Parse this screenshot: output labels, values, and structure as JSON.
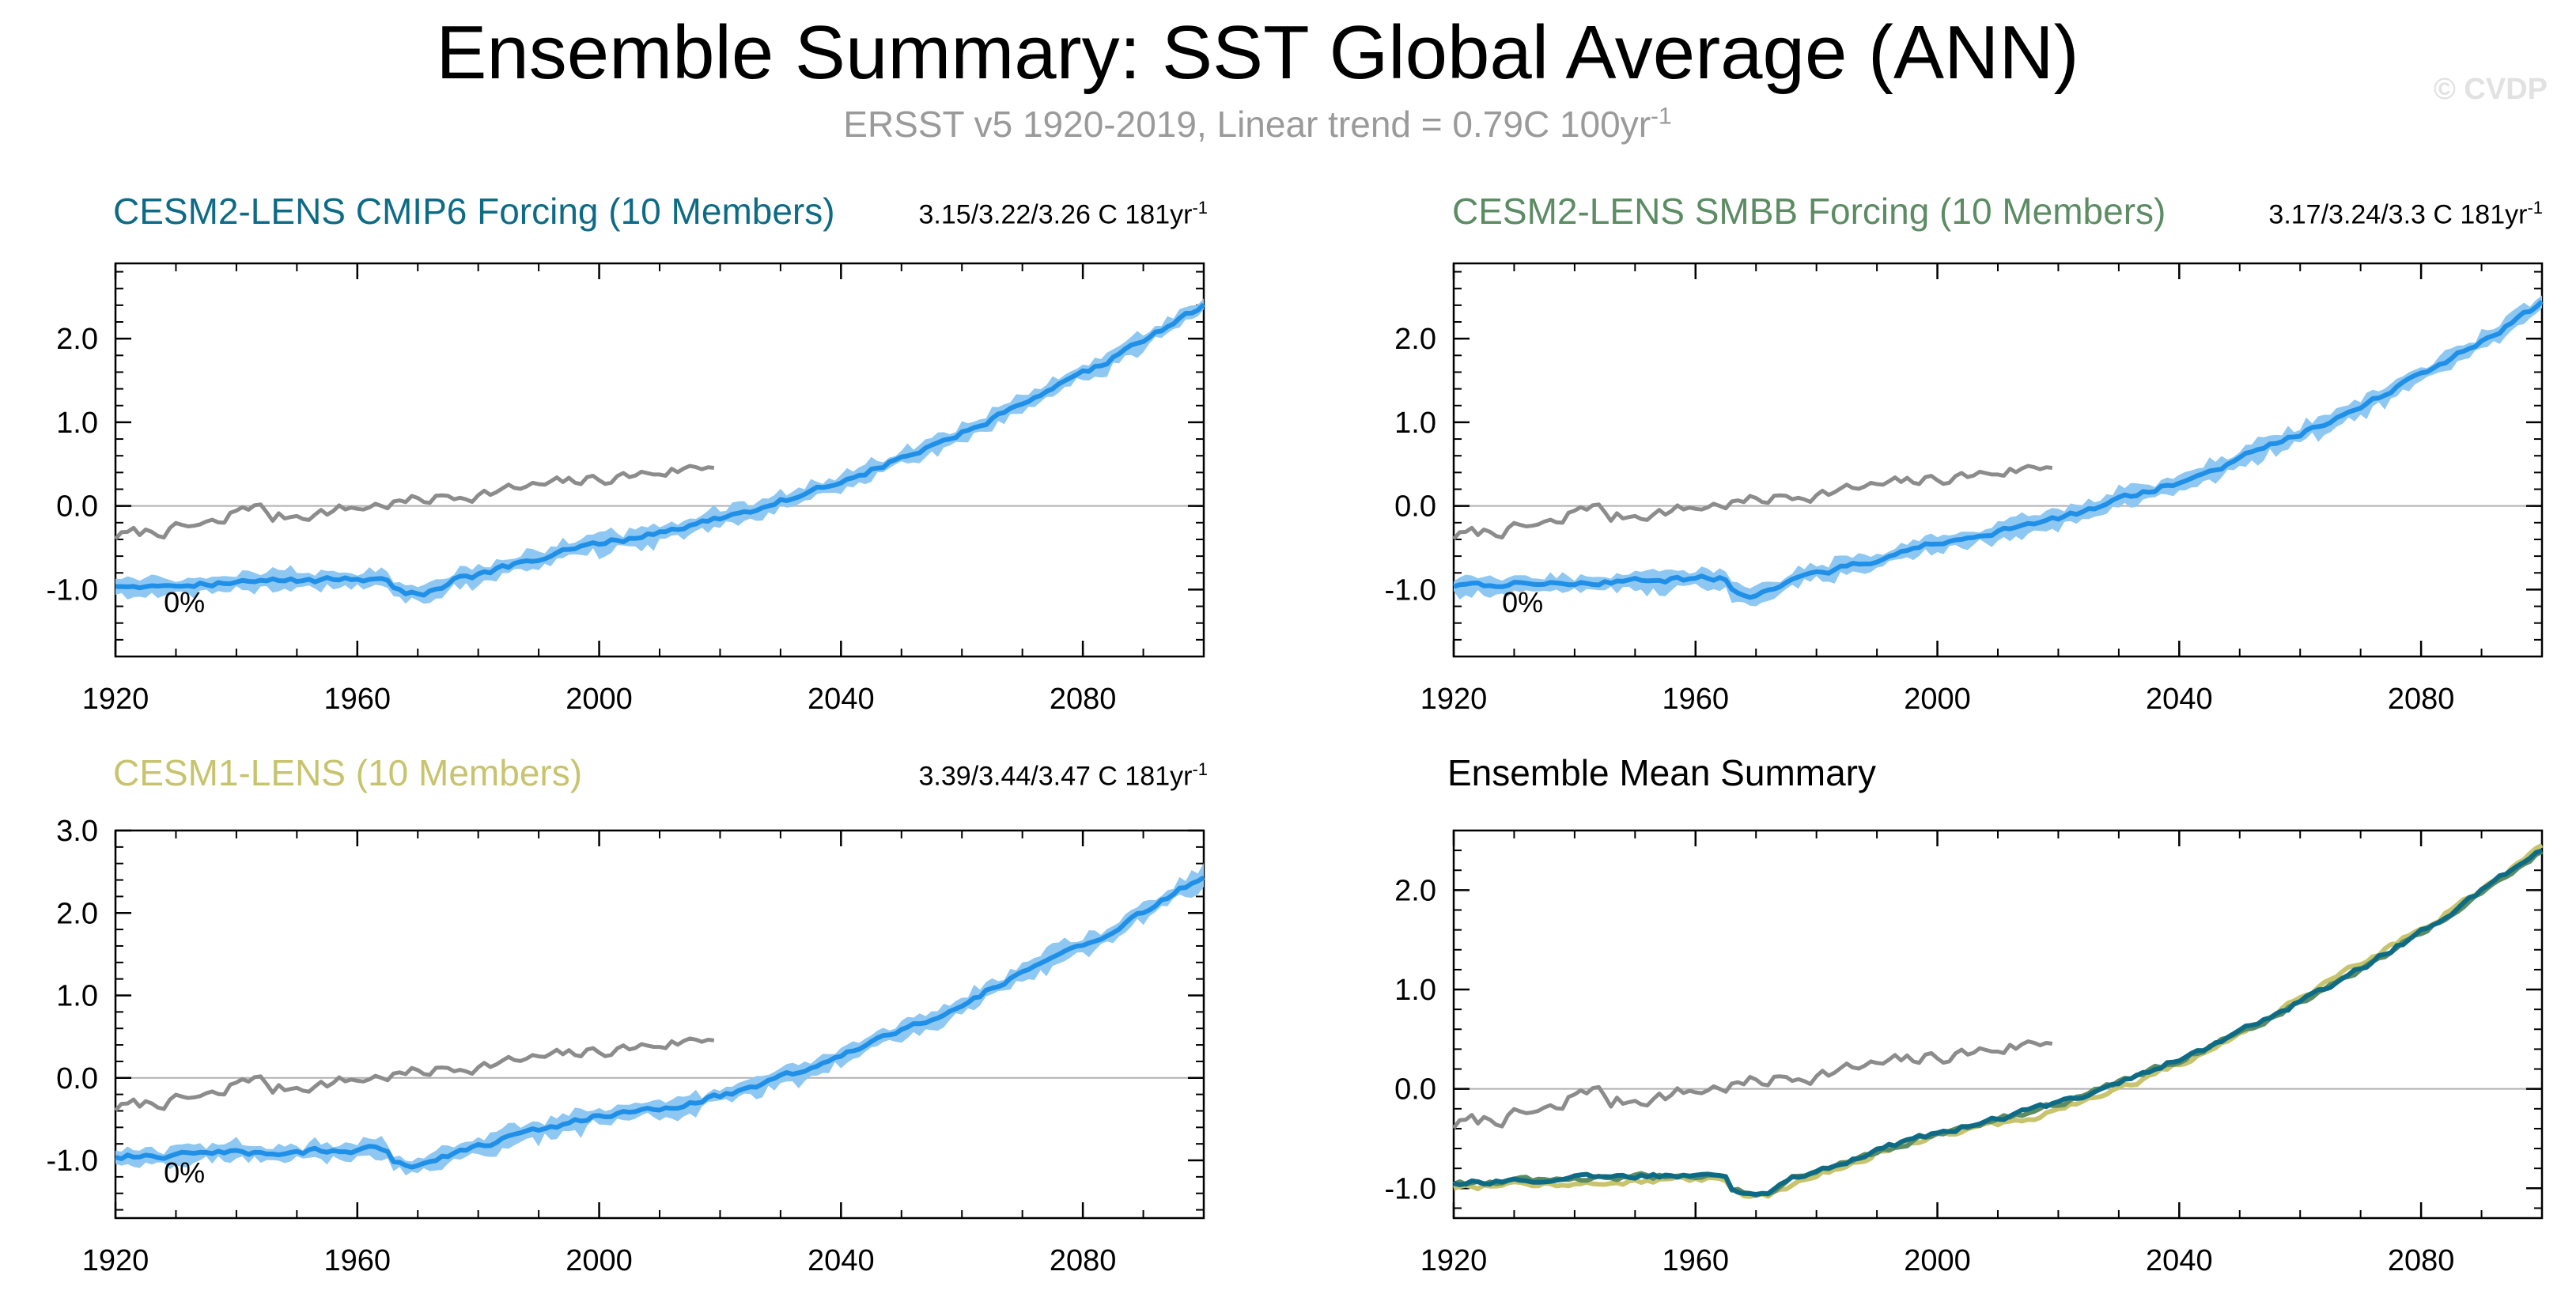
{
  "header": {
    "title": "Ensemble Summary: SST Global Average (ANN)",
    "subtitle_text": "ERSST v5 1920-2019, Linear trend = 0.79C 100yr",
    "subtitle_sup": "-1",
    "watermark": "© CVDP"
  },
  "colors": {
    "obs": "#8c8c8c",
    "ensemble_spread": "#8ec8f2",
    "ensemble_mean": "#1f8fe8",
    "cmip6": "#0e6b86",
    "smbb": "#5c8c63",
    "cesm1": "#c7c46d",
    "zero_line": "#b0b0b0"
  },
  "chart_data": [
    {
      "id": "cmip6",
      "type": "line",
      "title": "CESM2-LENS CMIP6 Forcing (10 Members)",
      "title_color": "#0e6b86",
      "trend_text": "3.15/3.22/3.26 C 181yr",
      "trend_sup": "-1",
      "annotation": "0%",
      "xlim": [
        1920,
        2100
      ],
      "ylim": [
        -1.8,
        2.9
      ],
      "xticks": [
        1920,
        1960,
        2000,
        2040,
        2080
      ],
      "xtick_labels": [
        "1920",
        "1960",
        "2000",
        "2040",
        "2080"
      ],
      "yticks": [
        -1.0,
        0.0,
        1.0,
        2.0
      ],
      "ytick_labels": [
        "-1.0",
        "0.0",
        "1.0",
        "2.0"
      ],
      "series": [
        {
          "name": "ERSST v5 observations",
          "role": "obs",
          "x_start": 1920,
          "x_end": 2019
        },
        {
          "name": "Ensemble mean",
          "role": "mean",
          "x_start": 1920,
          "x_end": 2100
        },
        {
          "name": "Ensemble spread",
          "role": "spread",
          "x_start": 1920,
          "x_end": 2100
        }
      ]
    },
    {
      "id": "smbb",
      "type": "line",
      "title": "CESM2-LENS SMBB Forcing (10 Members)",
      "title_color": "#5c8c63",
      "trend_text": "3.17/3.24/3.3 C 181yr",
      "trend_sup": "-1",
      "annotation": "0%",
      "xlim": [
        1920,
        2100
      ],
      "ylim": [
        -1.8,
        2.9
      ],
      "xticks": [
        1920,
        1960,
        2000,
        2040,
        2080
      ],
      "xtick_labels": [
        "1920",
        "1960",
        "2000",
        "2040",
        "2080"
      ],
      "yticks": [
        -1.0,
        0.0,
        1.0,
        2.0
      ],
      "ytick_labels": [
        "-1.0",
        "0.0",
        "1.0",
        "2.0"
      ],
      "series": [
        {
          "name": "ERSST v5 observations",
          "role": "obs",
          "x_start": 1920,
          "x_end": 2019
        },
        {
          "name": "Ensemble mean",
          "role": "mean",
          "x_start": 1920,
          "x_end": 2100
        },
        {
          "name": "Ensemble spread",
          "role": "spread",
          "x_start": 1920,
          "x_end": 2100
        }
      ]
    },
    {
      "id": "cesm1",
      "type": "line",
      "title": "CESM1-LENS (10 Members)",
      "title_color": "#c7c46d",
      "trend_text": "3.39/3.44/3.47 C 181yr",
      "trend_sup": "-1",
      "annotation": "0%",
      "xlim": [
        1920,
        2100
      ],
      "ylim": [
        -1.7,
        3.0
      ],
      "xticks": [
        1920,
        1960,
        2000,
        2040,
        2080
      ],
      "xtick_labels": [
        "1920",
        "1960",
        "2000",
        "2040",
        "2080"
      ],
      "yticks": [
        -1.0,
        0.0,
        1.0,
        2.0,
        3.0
      ],
      "ytick_labels": [
        "-1.0",
        "0.0",
        "1.0",
        "2.0",
        "3.0"
      ],
      "series": [
        {
          "name": "ERSST v5 observations",
          "role": "obs",
          "x_start": 1920,
          "x_end": 2019
        },
        {
          "name": "Ensemble mean",
          "role": "mean",
          "x_start": 1920,
          "x_end": 2100
        },
        {
          "name": "Ensemble spread",
          "role": "spread",
          "x_start": 1920,
          "x_end": 2100
        }
      ]
    },
    {
      "id": "summary",
      "type": "line",
      "title": "Ensemble Mean Summary",
      "title_color": "#000000",
      "xlim": [
        1920,
        2100
      ],
      "ylim": [
        -1.3,
        2.6
      ],
      "xticks": [
        1920,
        1960,
        2000,
        2040,
        2080
      ],
      "xtick_labels": [
        "1920",
        "1960",
        "2000",
        "2040",
        "2080"
      ],
      "yticks": [
        -1.0,
        0.0,
        1.0,
        2.0
      ],
      "ytick_labels": [
        "-1.0",
        "0.0",
        "1.0",
        "2.0"
      ],
      "series": [
        {
          "name": "ERSST v5 observations",
          "role": "obs",
          "x_start": 1920,
          "x_end": 2019
        },
        {
          "name": "CESM2-LENS CMIP6 Forcing",
          "role": "model",
          "color_key": "cmip6",
          "x_start": 1920,
          "x_end": 2100
        },
        {
          "name": "CESM2-LENS SMBB Forcing",
          "role": "model",
          "color_key": "smbb",
          "x_start": 1920,
          "x_end": 2100
        },
        {
          "name": "CESM1-LENS",
          "role": "model",
          "color_key": "cesm1",
          "x_start": 1920,
          "x_end": 2100
        }
      ]
    }
  ]
}
